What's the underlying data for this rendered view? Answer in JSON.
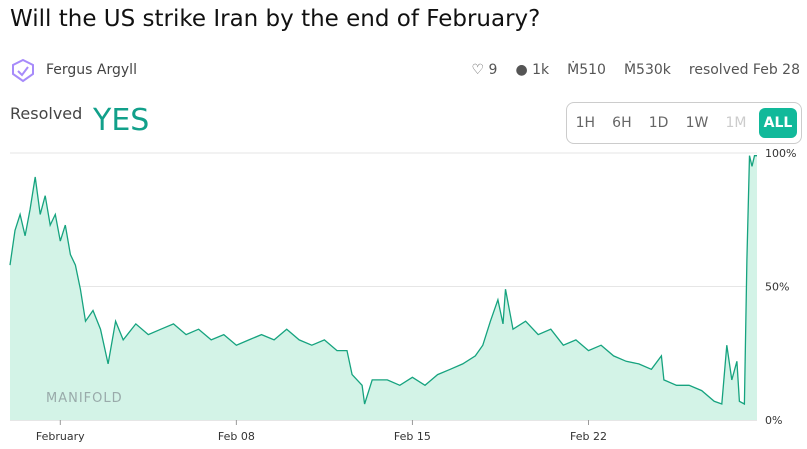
{
  "header": {
    "title": "Will the US strike Iran by the end of February?",
    "author": "Fergus Argyll",
    "stats": {
      "likes": "9",
      "traders": "1k",
      "liquidity": "Ṁ510",
      "volume": "Ṁ530k",
      "resolved": "resolved Feb 28"
    }
  },
  "status": {
    "label": "Resolved",
    "outcome": "YES"
  },
  "time_buttons": [
    "1H",
    "6H",
    "1D",
    "1W",
    "1M",
    "ALL"
  ],
  "watermark": "MANIFOLD",
  "chart_data": {
    "type": "line",
    "color": "#16a37f",
    "fill": "#d3f3e7",
    "grid": true,
    "x": [
      -1.0,
      -0.8,
      -0.6,
      -0.4,
      -0.2,
      0.0,
      0.2,
      0.4,
      0.6,
      0.8,
      1.0,
      1.2,
      1.4,
      1.6,
      1.8,
      2.0,
      2.3,
      2.6,
      2.9,
      3.2,
      3.5,
      4.0,
      4.5,
      5.0,
      5.5,
      6.0,
      6.5,
      7.0,
      7.5,
      8.0,
      8.5,
      9.0,
      9.5,
      10.0,
      10.5,
      11.0,
      11.5,
      12.0,
      12.4,
      12.6,
      13.0,
      13.1,
      13.4,
      14.0,
      14.5,
      15.0,
      15.5,
      16.0,
      16.5,
      17.0,
      17.5,
      17.8,
      18.1,
      18.4,
      18.6,
      18.7,
      19.0,
      19.5,
      20.0,
      20.5,
      21.0,
      21.5,
      22.0,
      22.5,
      23.0,
      23.5,
      24.0,
      24.5,
      24.9,
      25.0,
      25.5,
      26.0,
      26.5,
      27.0,
      27.3,
      27.5,
      27.7,
      27.9,
      28.0,
      28.2,
      28.3,
      28.4,
      28.5,
      28.6,
      28.7
    ],
    "series": [
      {
        "name": "YES",
        "values": [
          58,
          71,
          77,
          69,
          79,
          91,
          77,
          84,
          73,
          77,
          67,
          73,
          62,
          58,
          49,
          37,
          41,
          34,
          21,
          37,
          30,
          36,
          32,
          34,
          36,
          32,
          34,
          30,
          32,
          28,
          30,
          32,
          30,
          34,
          30,
          28,
          30,
          26,
          26,
          17,
          13,
          6,
          15,
          15,
          13,
          16,
          13,
          17,
          19,
          21,
          24,
          28,
          37,
          45,
          36,
          49,
          34,
          37,
          32,
          34,
          28,
          30,
          26,
          28,
          24,
          22,
          21,
          19,
          24,
          15,
          13,
          13,
          11,
          7,
          6,
          28,
          15,
          22,
          7,
          6,
          60,
          99,
          95,
          99,
          99
        ]
      }
    ],
    "xlim": [
      -1.0,
      28.7
    ],
    "xticks": [
      {
        "value": 1,
        "label": "February"
      },
      {
        "value": 8,
        "label": "Feb 08"
      },
      {
        "value": 15,
        "label": "Feb 15"
      },
      {
        "value": 22,
        "label": "Feb 22"
      }
    ],
    "ylim": [
      0,
      100
    ],
    "yticks": [
      {
        "value": 0,
        "label": "0%"
      },
      {
        "value": 50,
        "label": "50%"
      },
      {
        "value": 100,
        "label": "100%"
      }
    ]
  }
}
